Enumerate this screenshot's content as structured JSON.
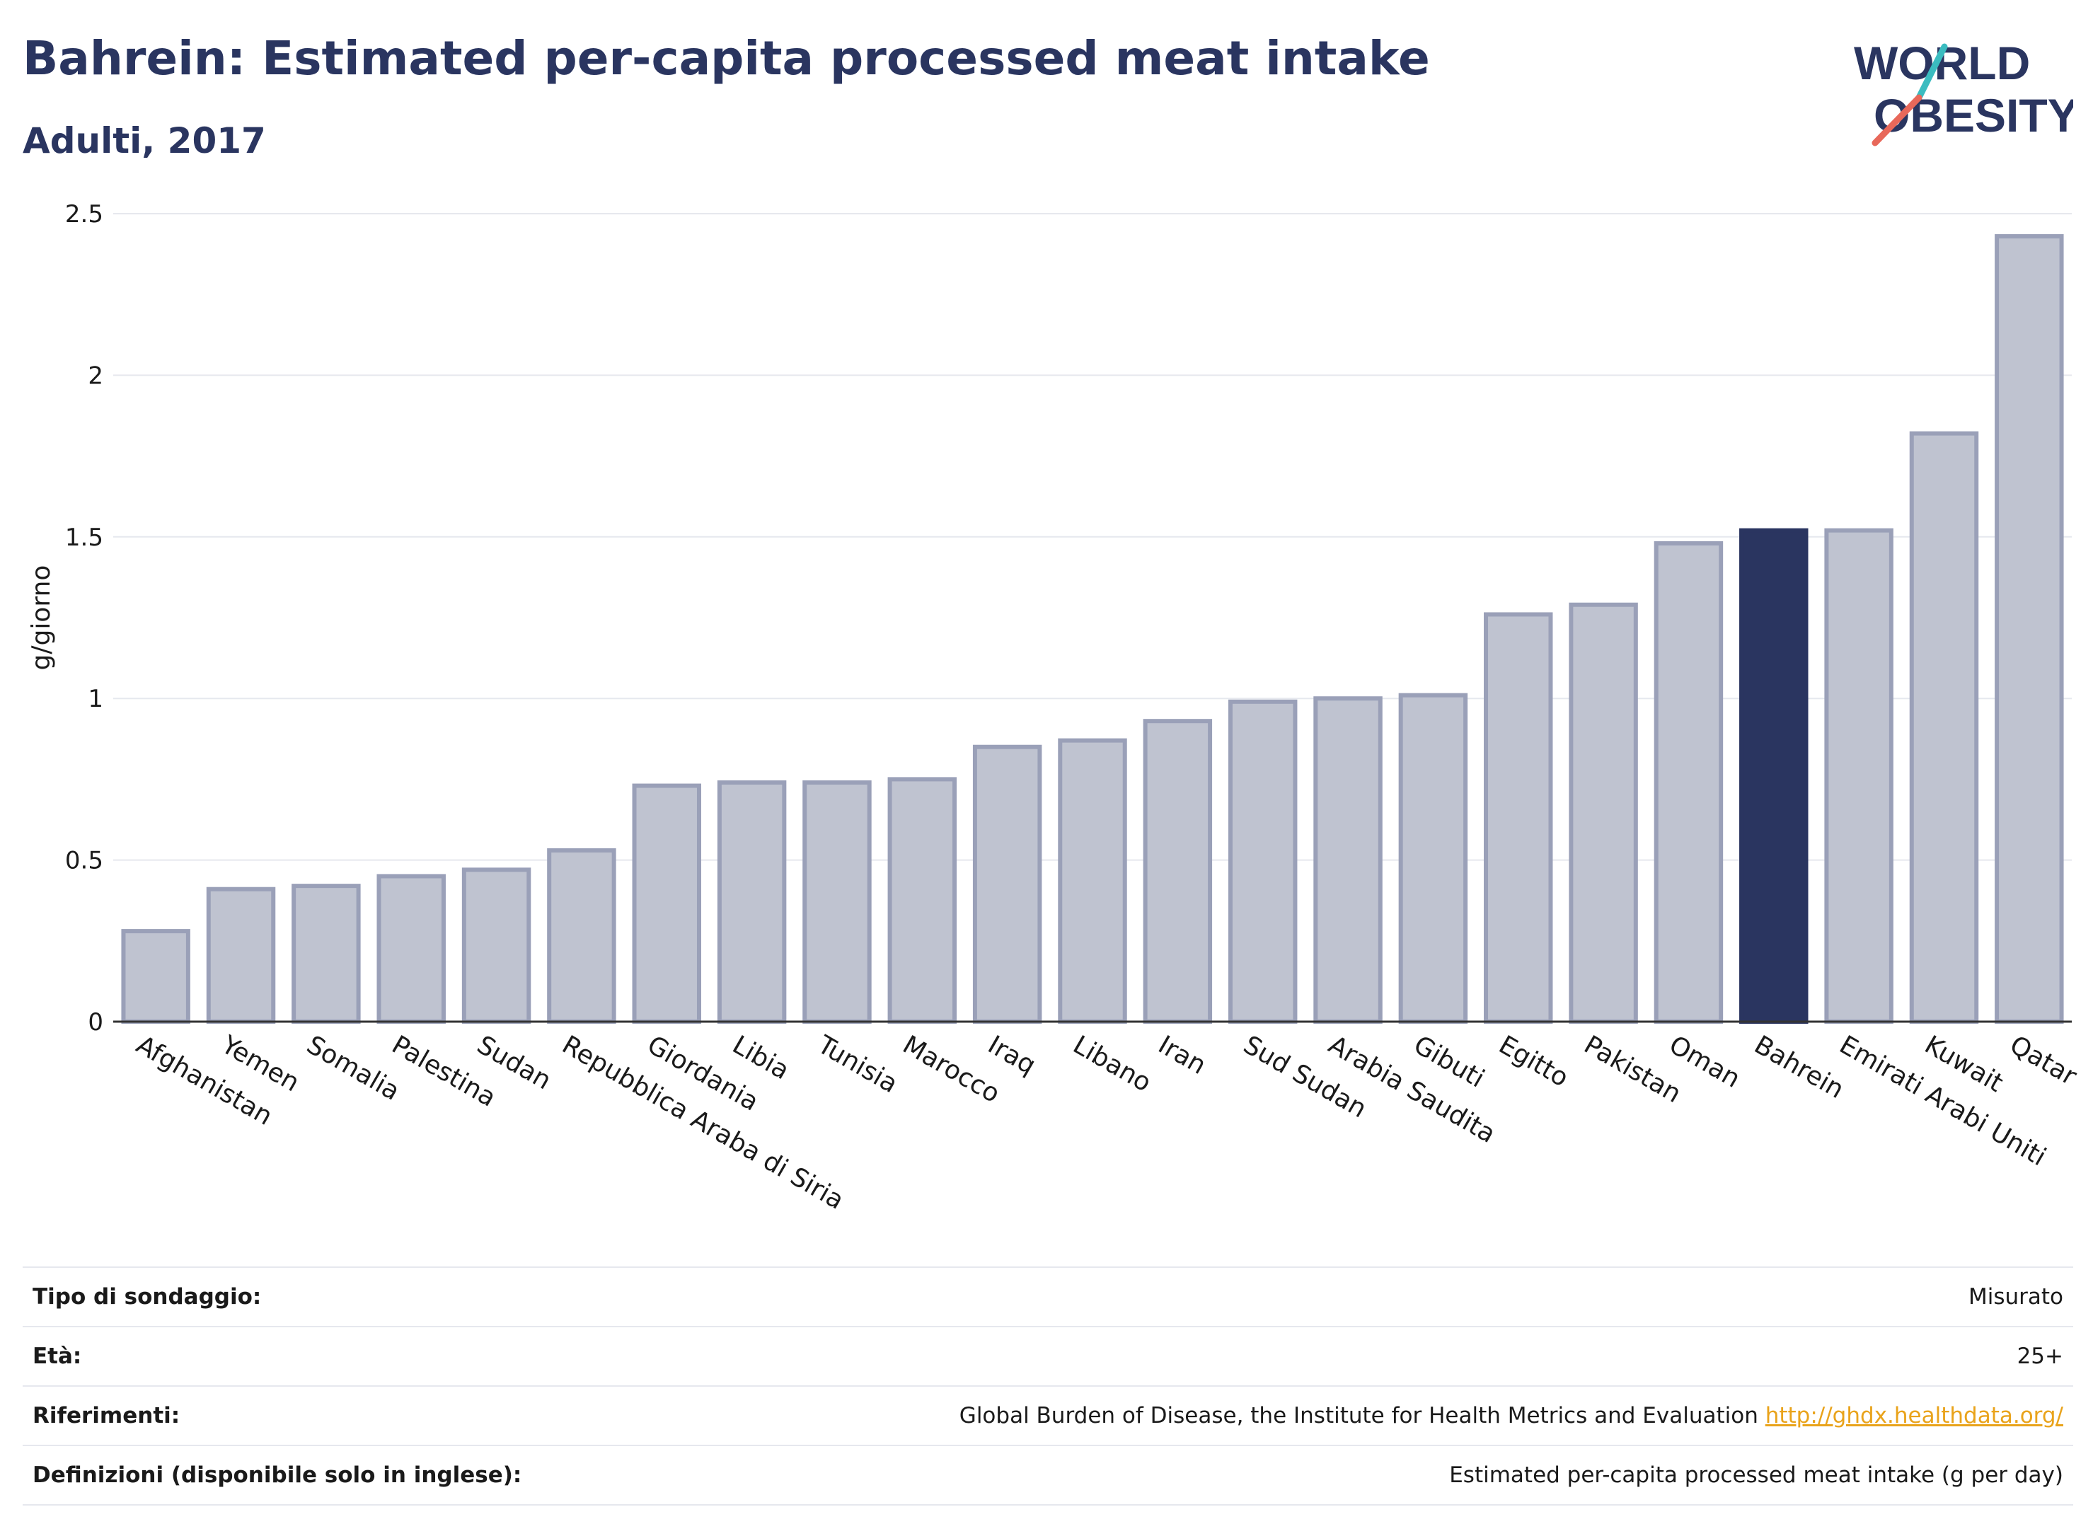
{
  "header": {
    "title": "Bahrein: Estimated per-capita processed meat intake",
    "subtitle": "Adulti, 2017",
    "logo_line1": "WORLD",
    "logo_line2": "OBESITY"
  },
  "colors": {
    "bar": "#bfc3d0",
    "bar_border": "#9aa0b8",
    "highlight": "#2a3560",
    "grid": "#e6e8ee",
    "logo_text": "#2a3560",
    "logo_teal": "#3bbcc0",
    "logo_coral": "#e8685a"
  },
  "chart_data": {
    "type": "bar",
    "ylabel": "g/giorno",
    "ylim": [
      0,
      2.5
    ],
    "yticks": [
      "0",
      "0.5",
      "1",
      "1.5",
      "2",
      "2.5"
    ],
    "highlight": "Bahrein",
    "categories": [
      "Afghanistan",
      "Yemen",
      "Somalia",
      "Palestina",
      "Sudan",
      "Repubblica Araba di Siria",
      "Giordania",
      "Libia",
      "Tunisia",
      "Marocco",
      "Iraq",
      "Libano",
      "Iran",
      "Sud Sudan",
      "Arabia Saudita",
      "Gibuti",
      "Egitto",
      "Pakistan",
      "Oman",
      "Bahrein",
      "Emirati Arabi Uniti",
      "Kuwait",
      "Qatar"
    ],
    "values": [
      0.28,
      0.41,
      0.42,
      0.45,
      0.47,
      0.53,
      0.73,
      0.74,
      0.74,
      0.75,
      0.85,
      0.87,
      0.93,
      0.99,
      1.0,
      1.01,
      1.26,
      1.29,
      1.48,
      1.52,
      1.52,
      1.82,
      2.43
    ]
  },
  "info": {
    "rows": [
      {
        "label": "Tipo di sondaggio:",
        "value": "Misurato"
      },
      {
        "label": "Età:",
        "value": "25+"
      },
      {
        "label": "Riferimenti:",
        "value": "Global Burden of Disease, the Institute for Health Metrics and Evaluation",
        "link": "http://ghdx.healthdata.org/"
      },
      {
        "label": "Definizioni (disponibile solo in inglese):",
        "value": "Estimated per-capita processed meat intake (g per day)"
      }
    ]
  }
}
